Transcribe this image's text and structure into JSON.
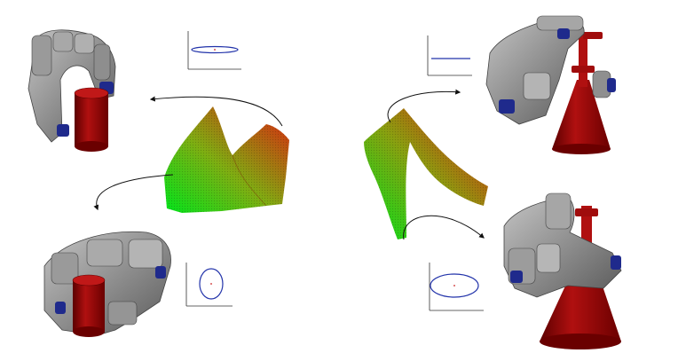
{
  "figure": {
    "background": "#ffffff",
    "hand_color": "#8f8f8f",
    "hand_highlight": "#c4c4c4",
    "hand_shadow": "#5a5a5a",
    "fingertip_color": "#1f2a8c",
    "object_color": "#a80c0c",
    "object_shadow": "#5c0000",
    "surface_colors": [
      "#00e51a",
      "#7fae12",
      "#e02010"
    ],
    "ellipse_color": "#2233aa",
    "arrow_color": "#111111"
  },
  "panels": [
    {
      "id": "top-left",
      "object": "cylinder",
      "grasp": "power-grasp",
      "plot": "flat-ellipse"
    },
    {
      "id": "bottom-left",
      "object": "cylinder",
      "grasp": "wrap-grasp",
      "plot": "tall-ellipse"
    },
    {
      "id": "top-right",
      "object": "funnel",
      "grasp": "handle-grasp",
      "plot": "line"
    },
    {
      "id": "bottom-right",
      "object": "funnel",
      "grasp": "side-grasp",
      "plot": "wide-ellipse"
    }
  ]
}
